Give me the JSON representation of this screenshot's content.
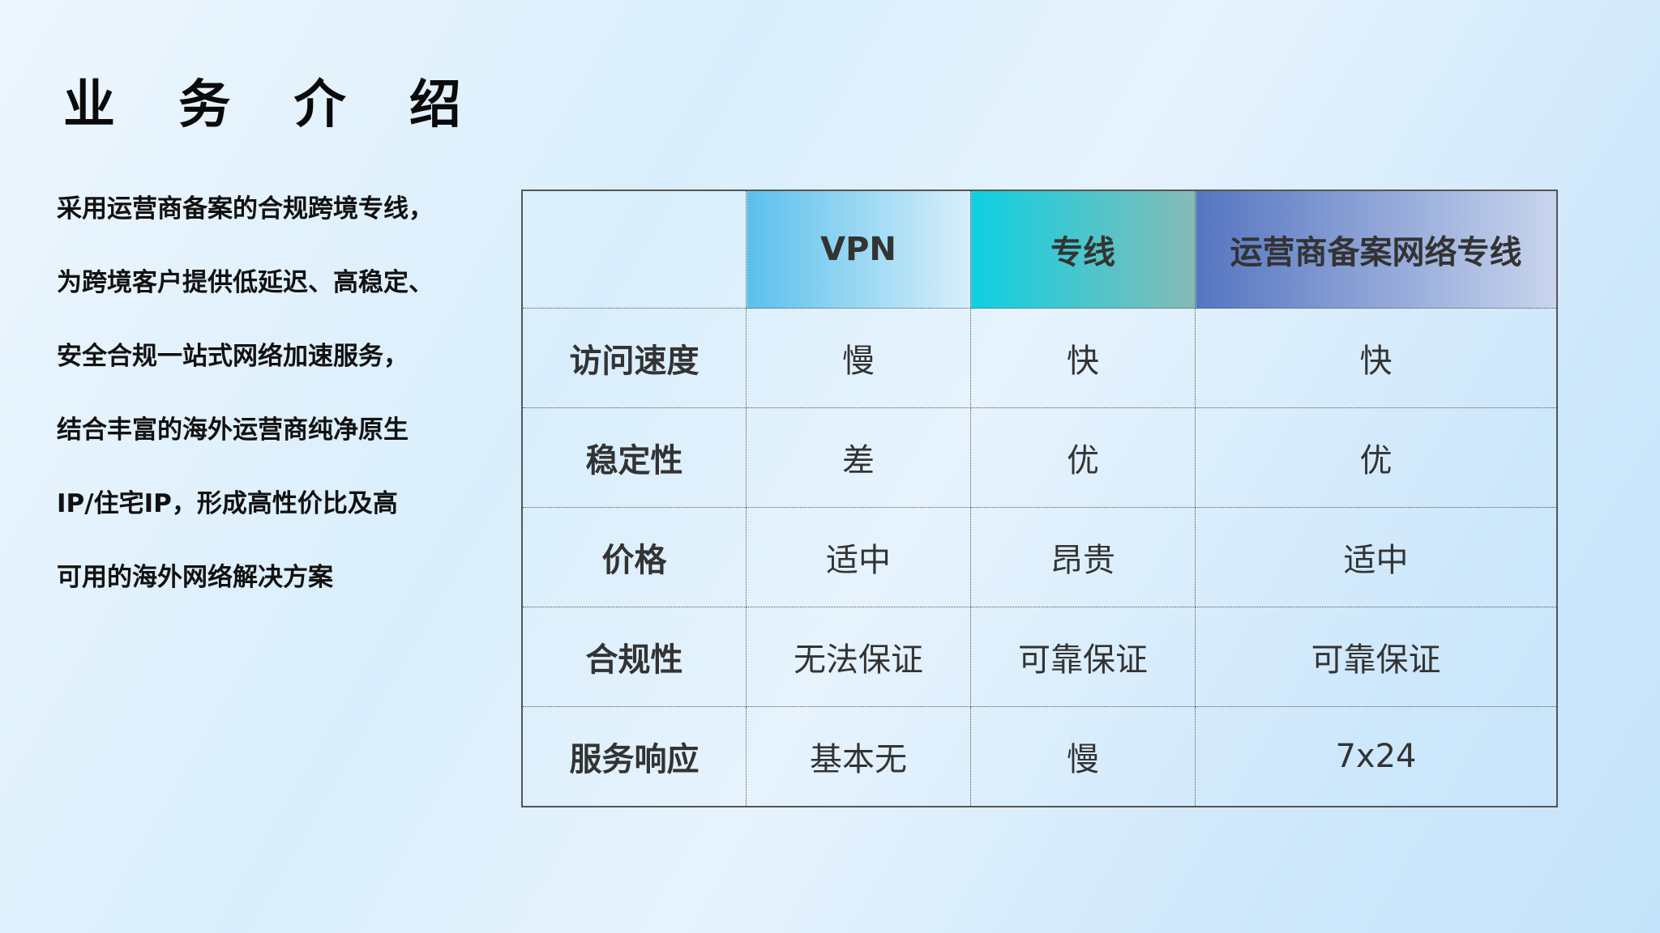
{
  "title": "业 务 介 绍",
  "description_lines": [
    "采用运营商备案的合规跨境专线，",
    "为跨境客户提供低延迟、高稳定、",
    "安全合规一站式网络加速服务，",
    "结合丰富的海外运营商纯净原生",
    "IP/住宅IP，形成高性价比及高",
    "可用的海外网络解决方案"
  ],
  "table": {
    "headers": [
      "",
      "VPN",
      "专线",
      "运营商备案网络专线"
    ],
    "header_colors": {
      "vpn": "#5bc0ec",
      "dedicated": "#0fd0e2",
      "carrier": "#5575c1"
    },
    "rows": [
      [
        "访问速度",
        "慢",
        "快",
        "快"
      ],
      [
        "稳定性",
        "差",
        "优",
        "优"
      ],
      [
        "价格",
        "适中",
        "昂贵",
        "适中"
      ],
      [
        "合规性",
        "无法保证",
        "可靠保证",
        "可靠保证"
      ],
      [
        "服务响应",
        "基本无",
        "慢",
        "7x24"
      ]
    ]
  }
}
